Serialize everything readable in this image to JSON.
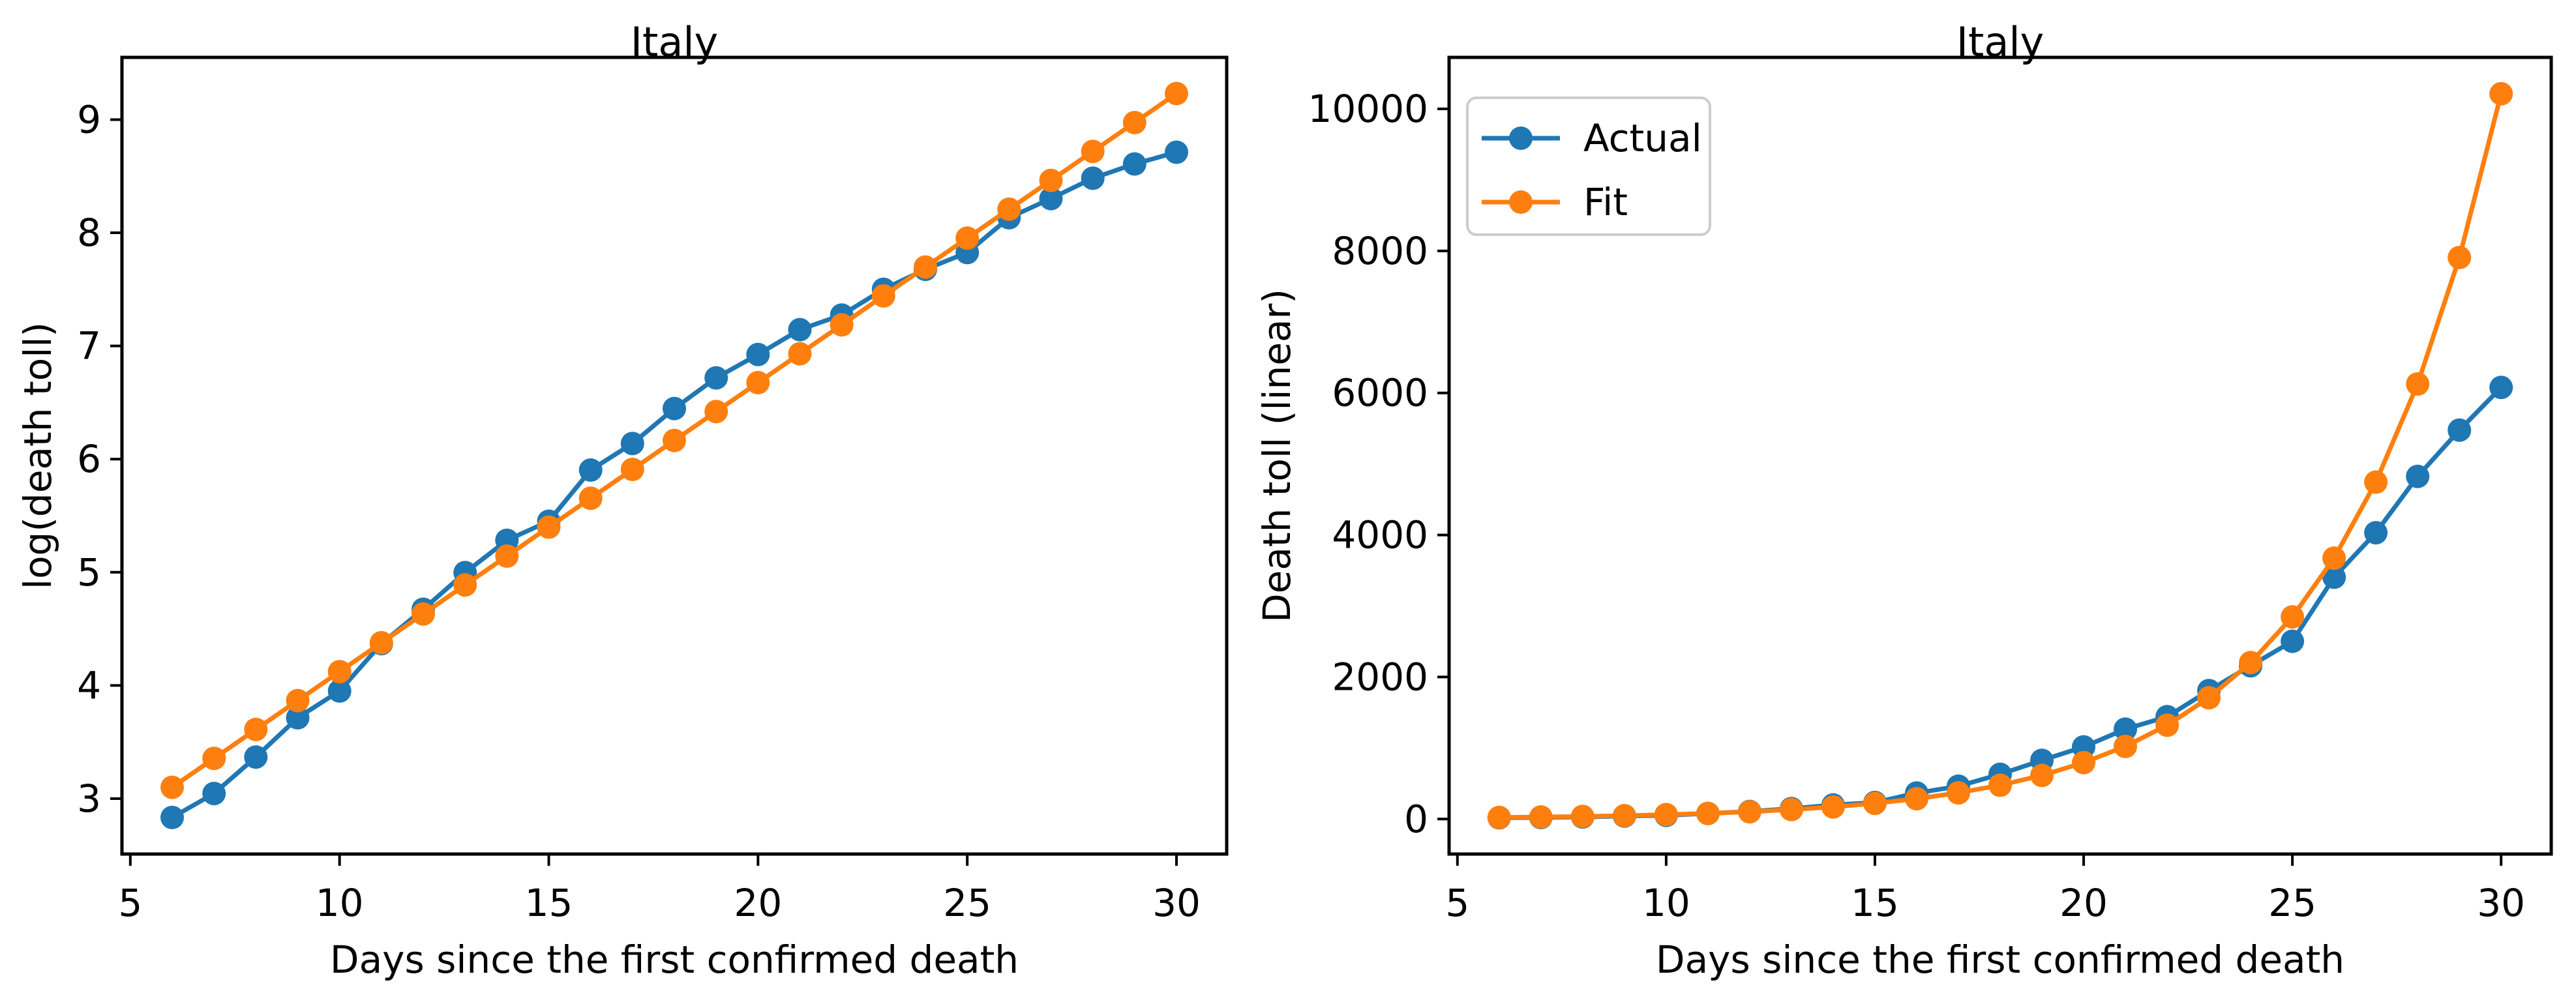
{
  "figure": {
    "background": "#ffffff"
  },
  "chart_data": [
    {
      "type": "line",
      "title": "Italy",
      "xlabel": "Days since the first confirmed death",
      "ylabel": "log(death toll)",
      "x": [
        6,
        7,
        8,
        9,
        10,
        11,
        12,
        13,
        14,
        15,
        16,
        17,
        18,
        19,
        20,
        21,
        22,
        23,
        24,
        25,
        26,
        27,
        28,
        29,
        30
      ],
      "series": [
        {
          "name": "Actual",
          "color": "#1f77b4",
          "values": [
            2.833,
            3.045,
            3.367,
            3.714,
            3.951,
            4.369,
            4.673,
            4.997,
            5.283,
            5.451,
            5.903,
            6.138,
            6.447,
            6.718,
            6.924,
            7.144,
            7.273,
            7.501,
            7.677,
            7.825,
            8.133,
            8.302,
            8.482,
            8.608,
            8.712
          ]
        },
        {
          "name": "Fit",
          "color": "#ff7f0e",
          "values": [
            3.1,
            3.355,
            3.611,
            3.866,
            4.122,
            4.377,
            4.632,
            4.888,
            5.143,
            5.399,
            5.654,
            5.909,
            6.165,
            6.42,
            6.676,
            6.931,
            7.186,
            7.442,
            7.697,
            7.953,
            8.208,
            8.463,
            8.719,
            8.974,
            9.23
          ]
        }
      ],
      "xticks": [
        5,
        10,
        15,
        20,
        25,
        30
      ],
      "yticks": [
        3,
        4,
        5,
        6,
        7,
        8,
        9
      ],
      "xlim": [
        4.8,
        31.2
      ],
      "ylim": [
        2.51,
        9.55
      ],
      "grid": false,
      "legend": {
        "visible": false,
        "entries": []
      }
    },
    {
      "type": "line",
      "title": "Italy",
      "xlabel": "Days since the first confirmed death",
      "ylabel": "Death toll (linear)",
      "x": [
        6,
        7,
        8,
        9,
        10,
        11,
        12,
        13,
        14,
        15,
        16,
        17,
        18,
        19,
        20,
        21,
        22,
        23,
        24,
        25,
        26,
        27,
        28,
        29,
        30
      ],
      "series": [
        {
          "name": "Actual",
          "color": "#1f77b4",
          "values": [
            17,
            21,
            29,
            41,
            52,
            79,
            107,
            148,
            197,
            233,
            366,
            463,
            631,
            827,
            1016,
            1266,
            1441,
            1809,
            2158,
            2503,
            3405,
            4032,
            4825,
            5476,
            6077
          ]
        },
        {
          "name": "Fit",
          "color": "#ff7f0e",
          "values": [
            22,
            29,
            37,
            48,
            62,
            80,
            103,
            133,
            171,
            221,
            286,
            369,
            476,
            614,
            794,
            1023,
            1321,
            1707,
            2203,
            2847,
            3674,
            4744,
            6126,
            7907,
            10213
          ]
        }
      ],
      "xticks": [
        5,
        10,
        15,
        20,
        25,
        30
      ],
      "yticks": [
        0,
        2000,
        4000,
        6000,
        8000,
        10000
      ],
      "xlim": [
        4.8,
        31.2
      ],
      "ylim": [
        -493,
        10725
      ],
      "grid": false,
      "legend": {
        "visible": true,
        "location": "upper left",
        "entries": [
          "Actual",
          "Fit"
        ]
      }
    }
  ]
}
